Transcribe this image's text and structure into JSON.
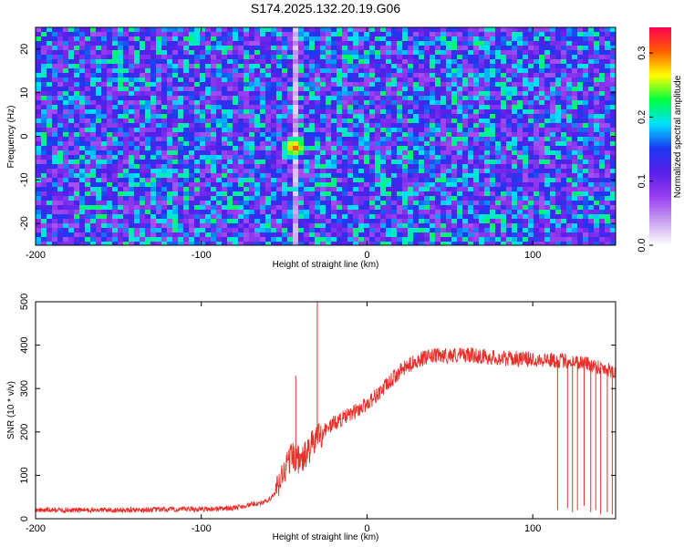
{
  "title": "S174.2025.132.20.19.G06",
  "colors": {
    "snr_line": "#e8302a",
    "colormap": [
      "#ffffff",
      "#c8a0f0",
      "#9a3ff0",
      "#5a1ee8",
      "#1c38f0",
      "#00e0ff",
      "#00ff40",
      "#ffff00",
      "#ff6000",
      "#ff0050"
    ]
  },
  "chart_data": [
    {
      "id": "spectrogram",
      "type": "heatmap",
      "xlabel": "Height of straight line (km)",
      "ylabel": "Frequency (Hz)",
      "xlim": [
        -200,
        150
      ],
      "ylim": [
        -25,
        25
      ],
      "xticks": [
        -200,
        -100,
        0,
        100
      ],
      "yticks": [
        20,
        10,
        0,
        -10,
        -20
      ],
      "colorbar": {
        "label": "Normalized spectral amplitude",
        "range": [
          0.0,
          0.34
        ],
        "ticks": [
          "0.0",
          "0.1",
          "0.2",
          "0.3"
        ]
      },
      "features": {
        "hotspot": {
          "x": -44,
          "y": -2,
          "value": 0.34
        },
        "clear_band_x": [
          -45,
          -40
        ]
      }
    },
    {
      "id": "snr",
      "type": "line",
      "xlabel": "Height of straight line (km)",
      "ylabel": "SNR (10 * v/v)",
      "xlim": [
        -200,
        150
      ],
      "ylim": [
        0,
        500
      ],
      "xticks": [
        -200,
        -100,
        0,
        100
      ],
      "yticks": [
        0,
        100,
        200,
        300,
        400,
        500
      ],
      "series": [
        {
          "envelope_x": [
            -200,
            -150,
            -100,
            -80,
            -60,
            -55,
            -50,
            -45,
            -40,
            -33,
            -30,
            -20,
            -10,
            0,
            10,
            20,
            30,
            40,
            60,
            80,
            100,
            115,
            130,
            150
          ],
          "envelope_y": [
            20,
            20,
            22,
            25,
            40,
            60,
            110,
            150,
            130,
            170,
            190,
            220,
            240,
            265,
            300,
            340,
            365,
            375,
            378,
            370,
            368,
            365,
            360,
            340
          ],
          "spikes": [
            {
              "x": -43,
              "y": 330
            },
            {
              "x": -30,
              "y": 505
            },
            {
              "x": 115,
              "y": 20
            },
            {
              "x": 121,
              "y": 25
            },
            {
              "x": 124,
              "y": 15
            },
            {
              "x": 127,
              "y": 20
            },
            {
              "x": 131,
              "y": 30
            },
            {
              "x": 135,
              "y": 15
            },
            {
              "x": 138,
              "y": 20
            },
            {
              "x": 141,
              "y": 10
            },
            {
              "x": 145,
              "y": 15
            },
            {
              "x": 148,
              "y": 10
            }
          ]
        }
      ]
    }
  ]
}
